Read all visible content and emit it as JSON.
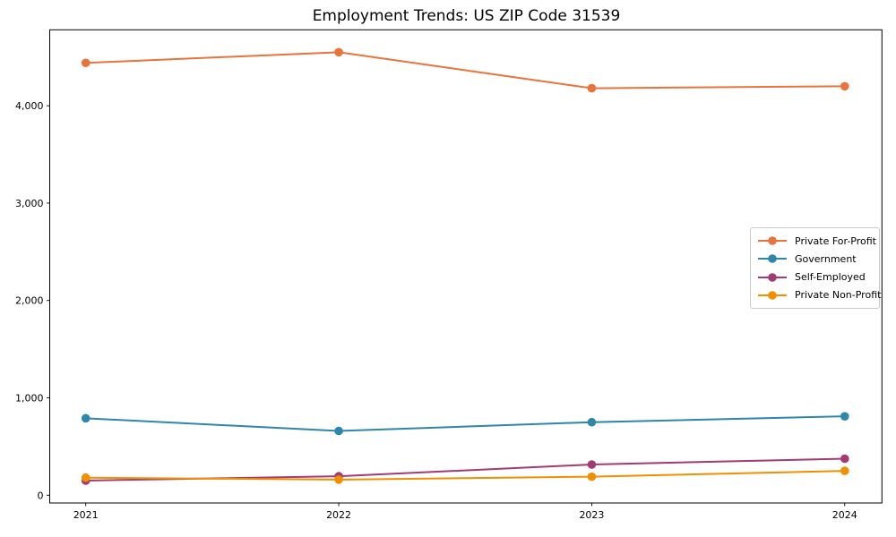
{
  "chart_data": {
    "type": "line",
    "title": "Employment Trends: US ZIP Code 31539",
    "xlabel": "",
    "ylabel": "",
    "categories": [
      "2021",
      "2022",
      "2023",
      "2024"
    ],
    "series": [
      {
        "name": "Private For-Profit",
        "color": "#E8743B",
        "values": [
          4440,
          4550,
          4180,
          4200
        ]
      },
      {
        "name": "Government",
        "color": "#2E86AB",
        "values": [
          790,
          660,
          750,
          810
        ]
      },
      {
        "name": "Self-Employed",
        "color": "#A23B72",
        "values": [
          150,
          195,
          315,
          375
        ]
      },
      {
        "name": "Private Non-Profit",
        "color": "#F18F01",
        "values": [
          180,
          160,
          190,
          250
        ]
      }
    ],
    "yticks": [
      0,
      1000,
      2000,
      3000,
      4000
    ],
    "ytick_labels": [
      "0",
      "1,000",
      "2,000",
      "3,000",
      "4,000"
    ],
    "ylim": [
      -80,
      4780
    ],
    "grid": false,
    "marker": "o",
    "legend_position": "center-right",
    "axis_color": "#000000"
  }
}
